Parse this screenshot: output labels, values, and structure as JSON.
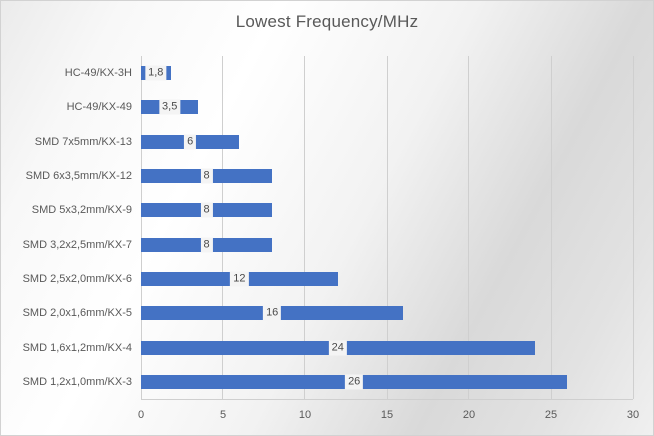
{
  "chart_data": {
    "type": "bar",
    "orientation": "horizontal",
    "title": "Lowest Frequency/MHz",
    "categories": [
      "HC-49/KX-3H",
      "HC-49/KX-49",
      "SMD 7x5mm/KX-13",
      "SMD 6x3,5mm/KX-12",
      "SMD 5x3,2mm/KX-9",
      "SMD 3,2x2,5mm/KX-7",
      "SMD 2,5x2,0mm/KX-6",
      "SMD 2,0x1,6mm/KX-5",
      "SMD 1,6x1,2mm/KX-4",
      "SMD 1,2x1,0mm/KX-3"
    ],
    "values": [
      1.8,
      3.5,
      6,
      8,
      8,
      8,
      12,
      16,
      24,
      26
    ],
    "value_labels": [
      "1,8",
      "3,5",
      "6",
      "8",
      "8",
      "8",
      "12",
      "16",
      "24",
      "26"
    ],
    "xlabel": "",
    "ylabel": "",
    "xlim": [
      0,
      30
    ],
    "xticks": [
      0,
      5,
      10,
      15,
      20,
      25,
      30
    ],
    "grid": "vertical-gridlines-on",
    "legend": "none",
    "data_labels": "centered-on-bar-with-light-background",
    "colors": {
      "bar": "#4472C4",
      "text": "#595959",
      "gridline": "#cfcfcf",
      "value_label_background": "#f4f4f4"
    }
  }
}
